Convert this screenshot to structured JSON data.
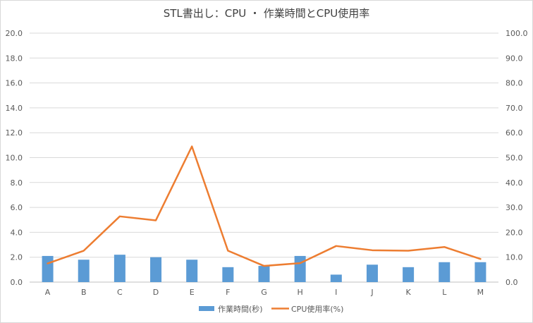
{
  "chart_data": {
    "type": "bar",
    "title": "STL書出し：CPU ・ 作業時間とCPU使用率",
    "categories": [
      "A",
      "B",
      "C",
      "D",
      "E",
      "F",
      "G",
      "H",
      "I",
      "J",
      "K",
      "L",
      "M"
    ],
    "series": [
      {
        "name": "作業時間(秒)",
        "type": "bar",
        "axis": "left",
        "color": "#5b9bd5",
        "values": [
          2.1,
          1.8,
          2.2,
          2.0,
          1.8,
          1.2,
          1.3,
          2.1,
          0.6,
          1.4,
          1.2,
          1.6,
          1.6
        ]
      },
      {
        "name": "CPU使用率(%)",
        "type": "line",
        "axis": "right",
        "color": "#ed7d31",
        "values": [
          7.5,
          12.6,
          26.4,
          24.8,
          54.5,
          12.6,
          6.5,
          7.6,
          14.5,
          12.8,
          12.6,
          14.1,
          9.3
        ]
      }
    ],
    "y_left": {
      "min": 0,
      "max": 20,
      "step": 2,
      "ticks": [
        "0.0",
        "2.0",
        "4.0",
        "6.0",
        "8.0",
        "10.0",
        "12.0",
        "14.0",
        "16.0",
        "18.0",
        "20.0"
      ]
    },
    "y_right": {
      "min": 0,
      "max": 100,
      "step": 10,
      "ticks": [
        "0.0",
        "10.0",
        "20.0",
        "30.0",
        "40.0",
        "50.0",
        "60.0",
        "70.0",
        "80.0",
        "90.0",
        "100.0"
      ]
    },
    "grid": true,
    "legend": "bottom",
    "legend_labels": [
      "作業時間(秒)",
      "CPU使用率(%)"
    ]
  }
}
